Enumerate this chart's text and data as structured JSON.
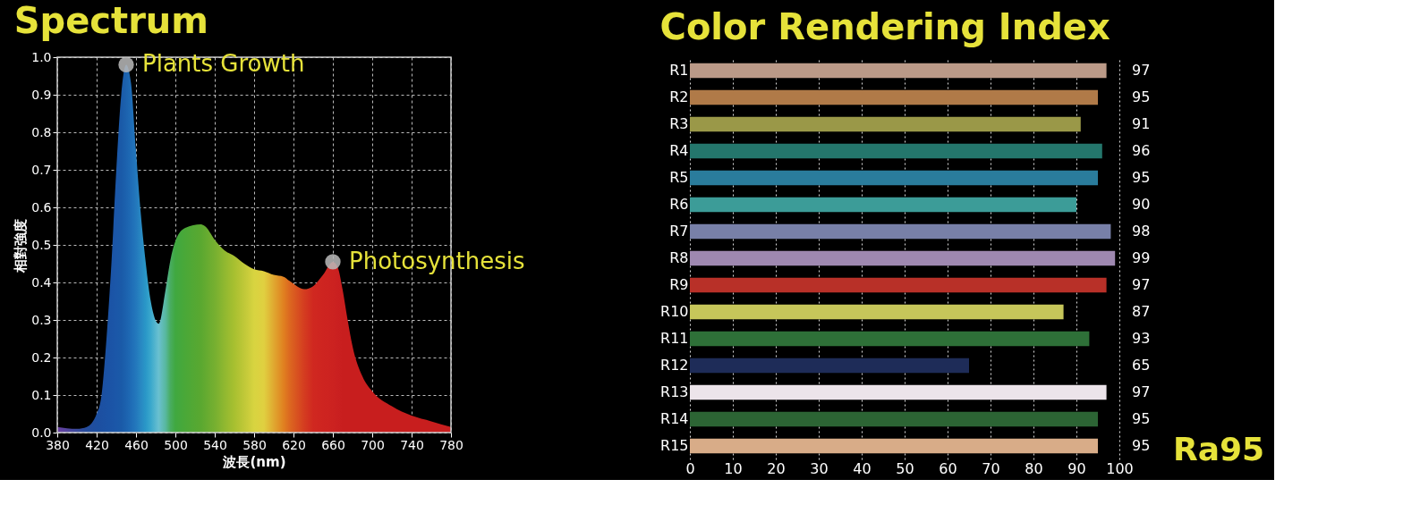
{
  "chart_data": [
    {
      "type": "area",
      "title": "Spectrum",
      "xlabel": "波長(nm)",
      "ylabel": "相對強度",
      "xlim": [
        380,
        780
      ],
      "ylim": [
        0,
        1.0
      ],
      "xticks": [
        380,
        420,
        460,
        500,
        540,
        580,
        620,
        660,
        700,
        740,
        780
      ],
      "yticks": [
        {
          "value": 0,
          "label": "0.0"
        },
        {
          "value": 0.1,
          "label": "0.1"
        },
        {
          "value": 0.2,
          "label": "0.2"
        },
        {
          "value": 0.3,
          "label": "0.3"
        },
        {
          "value": 0.4,
          "label": "0.4"
        },
        {
          "value": 0.5,
          "label": "0.5"
        },
        {
          "value": 0.6,
          "label": "0.6"
        },
        {
          "value": 0.7,
          "label": "0.7"
        },
        {
          "value": 0.8,
          "label": "0.8"
        },
        {
          "value": 0.9,
          "label": "0.9"
        },
        {
          "value": 1.0,
          "label": "1.0"
        }
      ],
      "grid": true,
      "x": [
        380,
        400,
        410,
        420,
        425,
        430,
        435,
        440,
        445,
        450,
        455,
        460,
        465,
        470,
        475,
        483,
        490,
        495,
        500,
        510,
        526,
        530,
        541,
        550,
        560,
        570,
        580,
        590,
        600,
        610,
        616,
        631,
        640,
        650,
        660,
        665,
        670,
        675,
        680,
        690,
        700,
        720,
        740,
        760,
        780
      ],
      "series": [
        {
          "values": [
            0.015,
            0.01,
            0.015,
            0.05,
            0.1,
            0.25,
            0.45,
            0.7,
            0.9,
            0.98,
            0.93,
            0.75,
            0.58,
            0.45,
            0.35,
            0.29,
            0.38,
            0.46,
            0.51,
            0.545,
            0.555,
            0.55,
            0.51,
            0.485,
            0.47,
            0.45,
            0.435,
            0.43,
            0.42,
            0.415,
            0.404,
            0.382,
            0.39,
            0.42,
            0.455,
            0.44,
            0.38,
            0.3,
            0.23,
            0.15,
            0.11,
            0.07,
            0.045,
            0.03,
            0.015
          ],
          "colors": [
            "#6a3fa0",
            "#3a4a9c",
            "#244c9c",
            "#1d4fa0",
            "#1c50a2",
            "#1b52a4",
            "#1b54a6",
            "#1b57a8",
            "#1a5aa8",
            "#1c62ae",
            "#1f6cb6",
            "#2378bc",
            "#2888c2",
            "#2a98c8",
            "#3aa8cc",
            "#6ac0d0",
            "#58b8a0",
            "#48ac60",
            "#40a840",
            "#4aa838",
            "#5aa830",
            "#62aa30",
            "#78b030",
            "#90b830",
            "#a8c030",
            "#c0c838",
            "#d8d440",
            "#e0d040",
            "#e0a830",
            "#e08020",
            "#dc6820",
            "#d43c20",
            "#d02820",
            "#ce2420",
            "#cc2220",
            "#ca2020",
            "#c81e1e",
            "#c81e1e",
            "#c81e1e",
            "#c81e1e",
            "#c81e1e",
            "#c81e1e",
            "#c81e1e",
            "#c81e1e",
            "#c81e1e"
          ]
        }
      ],
      "annotations": [
        {
          "text": "Plants Growth",
          "x": 450,
          "y": 0.98
        },
        {
          "text": "Photosynthesis",
          "x": 660,
          "y": 0.455
        }
      ]
    },
    {
      "type": "bar",
      "orientation": "horizontal",
      "title": "Color Rendering Index",
      "categories": [
        "R1",
        "R2",
        "R3",
        "R4",
        "R5",
        "R6",
        "R7",
        "R8",
        "R9",
        "R10",
        "R11",
        "R12",
        "R13",
        "R14",
        "R15"
      ],
      "values": [
        97,
        95,
        91,
        96,
        95,
        90,
        98,
        99,
        97,
        87,
        93,
        65,
        97,
        95,
        95
      ],
      "colors": [
        "#bb9a88",
        "#b07a48",
        "#9a9848",
        "#24766c",
        "#2a7c9c",
        "#3c9c98",
        "#7880a8",
        "#9e88b0",
        "#b83028",
        "#c6c65a",
        "#2e7038",
        "#1e2c58",
        "#ece4ea",
        "#2c6434",
        "#d8ac88"
      ],
      "xlim": [
        0,
        100
      ],
      "xticks": [
        0,
        10,
        20,
        30,
        40,
        50,
        60,
        70,
        80,
        90,
        100
      ],
      "grid": "x",
      "data_labels": true,
      "annotations": [
        "Ra95"
      ]
    }
  ]
}
